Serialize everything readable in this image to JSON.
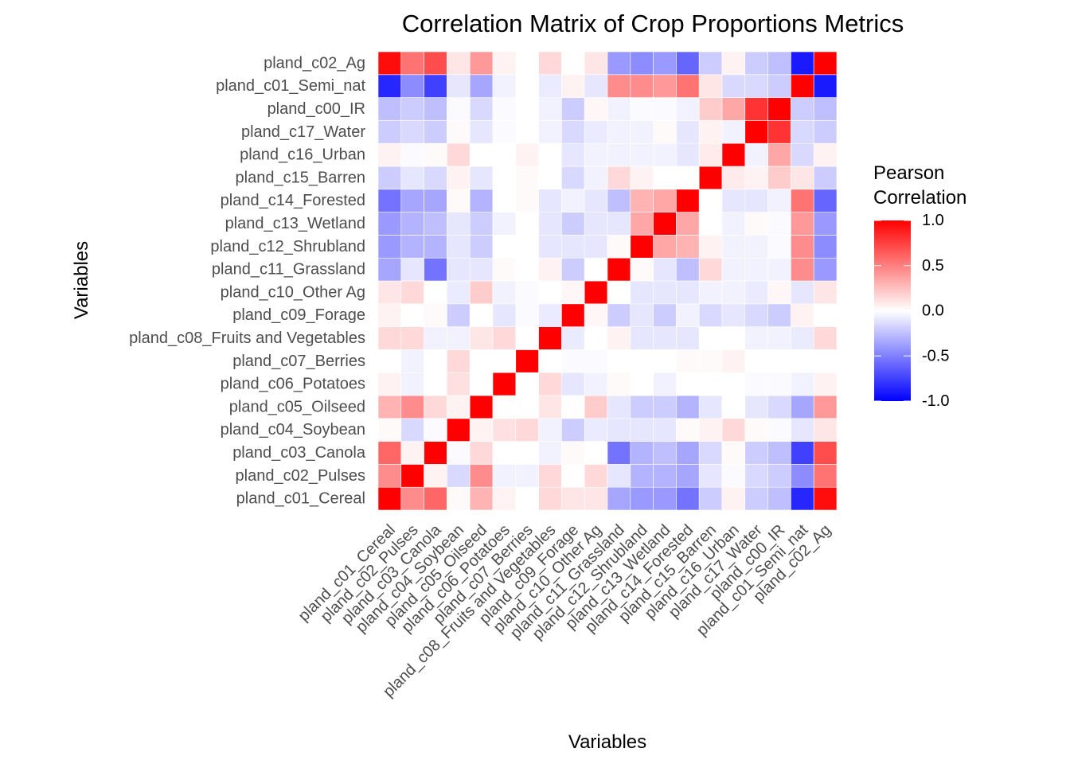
{
  "chart_data": {
    "type": "heatmap",
    "title": "Correlation Matrix of Crop Proportions Metrics",
    "xlabel": "Variables",
    "ylabel": "Variables",
    "legend": {
      "title_line1": "Pearson",
      "title_line2": "Correlation",
      "placement": "right",
      "range": [
        -1,
        1
      ],
      "ticks": [
        "1.0",
        "0.5",
        "0.0",
        "-0.5",
        "-1.0"
      ],
      "tick_values": [
        1,
        0.5,
        0,
        -0.5,
        -1
      ],
      "colors": {
        "low": "#0000ff",
        "mid": "#ffffff",
        "high": "#ff0000"
      }
    },
    "x_categories": [
      "pland_c01_Cereal",
      "pland_c02_Pulses",
      "pland_c03_Canola",
      "pland_c04_Soybean",
      "pland_c05_Oilseed",
      "pland_c06_Potatoes",
      "pland_c07_Berries",
      "pland_c08_Fruits and Vegetables",
      "pland_c09_Forage",
      "pland_c10_Other Ag",
      "pland_c11_Grassland",
      "pland_c12_Shrubland",
      "pland_c13_Wetland",
      "pland_c14_Forested",
      "pland_c15_Barren",
      "pland_c16_Urban",
      "pland_c17_Water",
      "pland_c00_IR",
      "pland_c01_Semi_nat",
      "pland_c02_Ag"
    ],
    "y_categories": [
      "pland_c01_Cereal",
      "pland_c02_Pulses",
      "pland_c03_Canola",
      "pland_c04_Soybean",
      "pland_c05_Oilseed",
      "pland_c06_Potatoes",
      "pland_c07_Berries",
      "pland_c08_Fruits and Vegetables",
      "pland_c09_Forage",
      "pland_c10_Other Ag",
      "pland_c11_Grassland",
      "pland_c12_Shrubland",
      "pland_c13_Wetland",
      "pland_c14_Forested",
      "pland_c15_Barren",
      "pland_c16_Urban",
      "pland_c17_Water",
      "pland_c00_IR",
      "pland_c01_Semi_nat",
      "pland_c02_Ag"
    ],
    "values": [
      [
        1.0,
        0.45,
        0.6,
        0.02,
        0.3,
        0.05,
        0.0,
        0.15,
        0.1,
        0.1,
        -0.35,
        -0.4,
        -0.4,
        -0.55,
        -0.2,
        0.05,
        -0.2,
        -0.25,
        -0.85,
        0.95
      ],
      [
        0.45,
        1.0,
        0.05,
        -0.15,
        0.45,
        -0.05,
        -0.05,
        0.15,
        0.0,
        0.15,
        -0.1,
        -0.3,
        -0.3,
        -0.35,
        -0.1,
        -0.02,
        -0.15,
        -0.2,
        -0.45,
        0.55
      ],
      [
        0.6,
        0.05,
        1.0,
        -0.02,
        0.15,
        0.0,
        0.0,
        -0.05,
        0.02,
        0.0,
        -0.55,
        -0.3,
        -0.25,
        -0.35,
        -0.15,
        0.02,
        -0.2,
        -0.25,
        -0.75,
        0.7
      ],
      [
        0.02,
        -0.15,
        -0.02,
        1.0,
        0.05,
        0.12,
        0.15,
        -0.05,
        -0.2,
        -0.08,
        -0.1,
        -0.1,
        -0.1,
        0.02,
        0.05,
        0.15,
        0.02,
        -0.02,
        -0.1,
        0.1
      ],
      [
        0.3,
        0.45,
        0.15,
        0.05,
        1.0,
        0.0,
        0.0,
        0.1,
        0.0,
        0.2,
        -0.1,
        -0.2,
        -0.2,
        -0.3,
        -0.1,
        0.0,
        -0.1,
        -0.15,
        -0.35,
        0.4
      ],
      [
        0.05,
        -0.05,
        0.0,
        0.12,
        0.0,
        1.0,
        0.0,
        0.15,
        -0.1,
        -0.05,
        0.02,
        0.0,
        -0.05,
        0.0,
        0.0,
        0.0,
        -0.02,
        -0.02,
        -0.05,
        0.05
      ],
      [
        0.0,
        -0.05,
        0.0,
        0.15,
        0.0,
        0.0,
        1.0,
        0.0,
        -0.02,
        -0.02,
        0.0,
        0.0,
        0.0,
        0.02,
        0.02,
        0.05,
        0.0,
        0.0,
        0.0,
        0.0
      ],
      [
        0.15,
        0.15,
        -0.05,
        -0.05,
        0.1,
        0.15,
        0.0,
        1.0,
        -0.08,
        0.0,
        0.05,
        -0.1,
        -0.1,
        -0.1,
        0.0,
        0.0,
        -0.05,
        -0.05,
        -0.08,
        0.15
      ],
      [
        0.05,
        0.0,
        0.02,
        -0.2,
        0.0,
        -0.1,
        -0.02,
        -0.08,
        1.0,
        0.03,
        -0.2,
        -0.1,
        -0.2,
        -0.05,
        -0.15,
        -0.1,
        -0.15,
        -0.2,
        0.05,
        0.0
      ],
      [
        0.1,
        0.15,
        0.0,
        -0.08,
        0.2,
        -0.05,
        -0.02,
        0.0,
        0.03,
        1.0,
        0.0,
        -0.1,
        -0.1,
        -0.1,
        -0.05,
        -0.05,
        -0.08,
        0.03,
        -0.1,
        0.1
      ],
      [
        -0.35,
        -0.1,
        -0.55,
        -0.1,
        -0.1,
        0.02,
        0.0,
        0.05,
        -0.2,
        0.0,
        1.0,
        0.02,
        -0.1,
        -0.25,
        0.15,
        -0.05,
        -0.05,
        -0.05,
        0.45,
        -0.4
      ],
      [
        -0.4,
        -0.3,
        -0.3,
        -0.1,
        -0.2,
        0.0,
        0.0,
        -0.1,
        -0.1,
        -0.1,
        0.02,
        1.0,
        0.35,
        0.3,
        0.05,
        -0.05,
        -0.05,
        -0.02,
        0.45,
        -0.45
      ],
      [
        -0.4,
        -0.3,
        -0.25,
        -0.1,
        -0.2,
        -0.05,
        0.0,
        -0.1,
        -0.2,
        -0.1,
        -0.1,
        0.35,
        1.0,
        0.35,
        0.0,
        -0.05,
        0.02,
        -0.02,
        0.4,
        -0.4
      ],
      [
        -0.55,
        -0.35,
        -0.35,
        0.02,
        -0.3,
        0.0,
        0.02,
        -0.1,
        -0.05,
        -0.1,
        -0.25,
        0.3,
        0.35,
        1.0,
        0.0,
        -0.1,
        -0.1,
        -0.05,
        0.55,
        -0.6
      ],
      [
        -0.2,
        -0.1,
        -0.15,
        0.05,
        -0.1,
        0.0,
        0.02,
        0.0,
        -0.15,
        -0.05,
        0.15,
        0.05,
        0.0,
        0.0,
        1.0,
        0.08,
        0.05,
        0.2,
        0.1,
        -0.2
      ],
      [
        0.05,
        -0.02,
        0.02,
        0.15,
        0.0,
        0.0,
        0.05,
        0.0,
        -0.1,
        -0.05,
        -0.05,
        -0.05,
        -0.05,
        -0.1,
        0.08,
        1.0,
        -0.05,
        0.35,
        -0.15,
        0.05
      ],
      [
        -0.2,
        -0.15,
        -0.2,
        0.02,
        -0.1,
        -0.02,
        0.0,
        -0.05,
        -0.15,
        -0.08,
        -0.05,
        -0.05,
        0.02,
        -0.1,
        0.05,
        -0.05,
        1.0,
        0.8,
        -0.15,
        -0.2
      ],
      [
        -0.25,
        -0.2,
        -0.25,
        -0.02,
        -0.15,
        -0.02,
        0.0,
        -0.05,
        -0.2,
        0.03,
        -0.05,
        -0.02,
        -0.02,
        -0.05,
        0.2,
        0.35,
        0.8,
        1.0,
        -0.2,
        -0.25
      ],
      [
        -0.85,
        -0.45,
        -0.75,
        -0.1,
        -0.35,
        -0.05,
        0.0,
        -0.08,
        0.05,
        -0.1,
        0.45,
        0.45,
        0.4,
        0.55,
        0.1,
        -0.15,
        -0.15,
        -0.2,
        1.0,
        -0.9
      ],
      [
        0.95,
        0.55,
        0.7,
        0.1,
        0.4,
        0.05,
        0.0,
        0.15,
        0.0,
        0.1,
        -0.4,
        -0.45,
        -0.4,
        -0.6,
        -0.2,
        0.05,
        -0.2,
        -0.25,
        -0.9,
        1.0
      ]
    ]
  }
}
